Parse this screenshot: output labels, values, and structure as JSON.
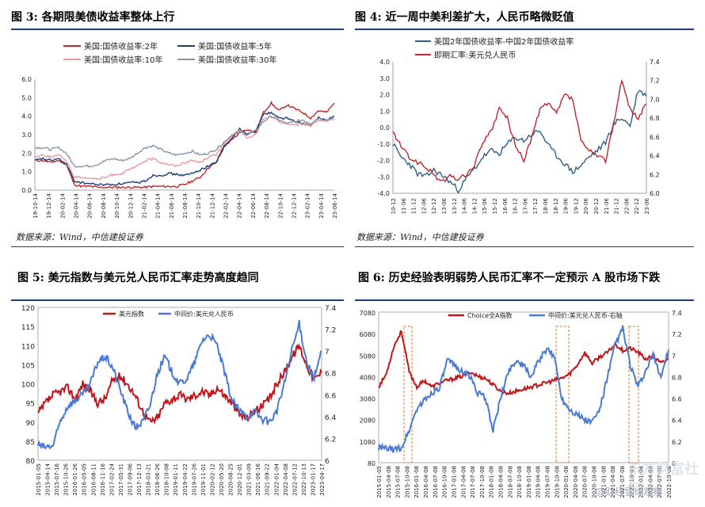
{
  "chart_data": [
    {
      "type": "line",
      "title": "图 3: 各期限美债收益率整体上行",
      "source": "数据来源：Wind，中信建投证券",
      "ylim": [
        0,
        6
      ],
      "y_ticks": [
        "0.0",
        "1.0",
        "2.0",
        "3.0",
        "4.0",
        "5.0",
        "6.0"
      ],
      "x_ticks": [
        "19-10-14",
        "19-12-14",
        "20-02-14",
        "20-04-14",
        "20-06-14",
        "20-08-14",
        "20-10-14",
        "20-12-14",
        "21-02-14",
        "21-04-14",
        "21-06-14",
        "21-08-14",
        "21-10-14",
        "21-12-14",
        "22-02-14",
        "22-04-14",
        "22-06-14",
        "22-08-14",
        "22-10-14",
        "22-12-14",
        "23-02-14",
        "23-04-14",
        "23-06-14"
      ],
      "legend_position": "top",
      "series": [
        {
          "name": "美国:国债收益率:2年",
          "color": "#c0272d",
          "values": [
            1.6,
            1.6,
            1.5,
            1.6,
            1.4,
            0.3,
            0.2,
            0.2,
            0.15,
            0.15,
            0.15,
            0.15,
            0.15,
            0.15,
            0.15,
            0.2,
            0.2,
            0.2,
            0.2,
            0.3,
            0.5,
            0.7,
            1.2,
            1.5,
            2.4,
            2.7,
            3.1,
            3.3,
            3.1,
            4.2,
            4.7,
            4.3,
            4.6,
            4.4,
            4.2,
            3.9,
            4.3,
            4.2,
            4.7
          ]
        },
        {
          "name": "美国:国债收益率:5年",
          "color": "#1f3d7a",
          "values": [
            1.6,
            1.7,
            1.6,
            1.7,
            1.4,
            0.5,
            0.4,
            0.35,
            0.3,
            0.3,
            0.3,
            0.35,
            0.4,
            0.4,
            0.5,
            0.8,
            0.8,
            0.9,
            0.85,
            0.8,
            0.9,
            1.1,
            1.3,
            1.5,
            2.3,
            2.8,
            3.3,
            3.0,
            3.2,
            4.1,
            4.2,
            3.9,
            3.9,
            3.7,
            3.6,
            3.5,
            3.9,
            3.8,
            4.0
          ]
        },
        {
          "name": "美国:国债收益率:10年",
          "color": "#e8999b",
          "values": [
            1.8,
            1.9,
            1.8,
            1.9,
            1.6,
            0.7,
            0.7,
            0.65,
            0.6,
            0.7,
            0.85,
            0.9,
            1.1,
            1.3,
            1.6,
            1.7,
            1.5,
            1.4,
            1.3,
            1.5,
            1.6,
            1.5,
            1.8,
            1.9,
            2.5,
            2.9,
            3.2,
            2.8,
            3.0,
            3.8,
            4.0,
            3.7,
            3.6,
            3.5,
            3.6,
            3.5,
            3.8,
            3.7,
            3.8
          ]
        },
        {
          "name": "美国:国债收益率:30年",
          "color": "#8a96a8",
          "values": [
            2.3,
            2.3,
            2.2,
            2.3,
            2.0,
            1.3,
            1.3,
            1.3,
            1.4,
            1.6,
            1.7,
            1.6,
            1.7,
            2.0,
            2.3,
            2.4,
            2.2,
            2.0,
            1.9,
            2.0,
            2.1,
            1.9,
            2.0,
            2.2,
            2.6,
            3.0,
            3.2,
            3.0,
            3.2,
            3.7,
            4.0,
            3.8,
            3.6,
            3.7,
            3.8,
            3.6,
            3.9,
            3.8,
            3.9
          ]
        }
      ]
    },
    {
      "type": "line",
      "title": "图 4: 近一周中美利差扩大，人民币略微贬值",
      "source": "数据来源：Wind，中信建投证券",
      "ylim": [
        -4.0,
        4.0
      ],
      "y2lim": [
        6.0,
        7.4
      ],
      "y_ticks": [
        "-4.0",
        "-3.0",
        "-2.0",
        "-1.0",
        "0.0",
        "1.0",
        "2.0",
        "3.0",
        "4.0"
      ],
      "y2_ticks": [
        "6.0",
        "6.2",
        "6.4",
        "6.6",
        "6.8",
        "7.0",
        "7.2",
        "7.4"
      ],
      "x_ticks": [
        "10-12",
        "11-06",
        "11-12",
        "12-06",
        "12-12",
        "13-06",
        "13-12",
        "14-06",
        "14-12",
        "15-06",
        "15-12",
        "16-06",
        "16-12",
        "17-06",
        "17-12",
        "18-06",
        "18-12",
        "19-06",
        "19-12",
        "20-06",
        "20-12",
        "21-06",
        "21-12",
        "22-06",
        "22-12",
        "23-06"
      ],
      "legend_position": "top-left",
      "series": [
        {
          "name": "美国2年国债收益率-中国2年国债收益率",
          "color": "#2e5f8a",
          "axis": "left",
          "values": [
            -1.0,
            -1.8,
            -2.2,
            -2.8,
            -3.0,
            -2.6,
            -2.9,
            -3.3,
            -3.8,
            -3.1,
            -2.5,
            -1.8,
            -1.4,
            -1.6,
            -1.0,
            -0.6,
            -0.8,
            -0.4,
            -0.2,
            -1.1,
            -1.7,
            -2.2,
            -2.7,
            -2.3,
            -1.8,
            -1.4,
            -0.9,
            0.2,
            0.6,
            0.1,
            2.3,
            1.9
          ]
        },
        {
          "name": "即期汇率:美元兑人民币",
          "color": "#c0272d",
          "axis": "right",
          "values": [
            6.65,
            6.5,
            6.38,
            6.33,
            6.28,
            6.2,
            6.12,
            6.18,
            6.15,
            6.2,
            6.3,
            6.55,
            6.65,
            6.9,
            6.8,
            6.5,
            6.35,
            6.6,
            6.9,
            6.95,
            6.85,
            7.05,
            7.0,
            6.55,
            6.45,
            6.4,
            6.35,
            6.75,
            7.2,
            6.9,
            6.8,
            6.95
          ]
        }
      ]
    },
    {
      "type": "line",
      "title": "图 5: 美元指数与美元兑人民币汇率走势高度趋同",
      "ylim": [
        80,
        120
      ],
      "y2lim": [
        6.0,
        7.4
      ],
      "y_ticks": [
        "80",
        "85",
        "90",
        "95",
        "100",
        "105",
        "110",
        "115",
        "120"
      ],
      "y2_ticks": [
        "6",
        "6.2",
        "6.4",
        "6.6",
        "6.8",
        "7",
        "7.2",
        "7.4"
      ],
      "x_ticks": [
        "2015-01-05",
        "2015-04-14",
        "2015-07-16",
        "2015-10-26",
        "2016-01-26",
        "2016-05-05",
        "2016-08-11",
        "2016-11-16",
        "2017-02-24",
        "2017-05-31",
        "2017-09-06",
        "2017-12-13",
        "2018-03-21",
        "2018-06-26",
        "2018-10-08",
        "2019-01-11",
        "2019-04-22",
        "2019-07-26",
        "2019-11-01",
        "2020-02-12",
        "2020-05-20",
        "2020-08-25",
        "2020-12-01",
        "2021-03-09",
        "2021-06-16",
        "2021-09-22",
        "2022-01-04",
        "2022-04-08",
        "2022-07-12",
        "2022-10-13",
        "2023-01-17",
        "2023-04-17"
      ],
      "legend_position": "top-center",
      "series": [
        {
          "name": "美元指数",
          "color": "#c0171d",
          "axis": "left",
          "values": [
            92,
            95,
            97,
            98,
            99,
            96,
            100,
            98,
            95,
            96,
            101,
            102,
            100,
            97,
            93,
            90,
            91,
            95,
            96,
            97,
            96,
            97,
            98,
            97,
            99,
            97,
            95,
            92,
            91,
            93,
            94,
            96,
            100,
            103,
            107,
            110,
            105,
            101,
            103
          ]
        },
        {
          "name": "中间价:美元兑人民币",
          "color": "#4a7bd0",
          "axis": "right",
          "values": [
            6.14,
            6.12,
            6.13,
            6.36,
            6.5,
            6.55,
            6.6,
            6.7,
            6.9,
            6.95,
            6.85,
            6.65,
            6.45,
            6.3,
            6.35,
            6.5,
            6.8,
            6.95,
            6.8,
            6.7,
            6.75,
            6.9,
            7.1,
            7.15,
            7.05,
            6.8,
            6.55,
            6.45,
            6.4,
            6.45,
            6.38,
            6.35,
            6.45,
            6.7,
            7.0,
            7.25,
            6.9,
            6.75,
            7.0
          ]
        }
      ]
    },
    {
      "type": "line",
      "title": "图 6: 历史经验表明弱势人民币汇率不一定预示 A 股市场下跌",
      "ylim": [
        80,
        7080
      ],
      "y2lim": [
        6.0,
        7.4
      ],
      "y_ticks": [
        "80",
        "1080",
        "2080",
        "3080",
        "4080",
        "5080",
        "6080",
        "7080"
      ],
      "y2_ticks": [
        "6",
        "6.2",
        "6.4",
        "6.6",
        "6.8",
        "7",
        "7.2",
        "7.4"
      ],
      "x_ticks": [
        "2015-01-05",
        "2015-04-08",
        "2015-07-08",
        "2015-10-08",
        "2016-01-08",
        "2016-04-08",
        "2016-07-08",
        "2016-10-08",
        "2017-01-08",
        "2017-04-08",
        "2017-07-08",
        "2017-10-08",
        "2018-01-08",
        "2018-04-08",
        "2018-07-08",
        "2018-10-08",
        "2019-01-08",
        "2019-04-08",
        "2019-07-08",
        "2019-10-08",
        "2020-01-08",
        "2020-04-08",
        "2020-07-08",
        "2020-10-08",
        "2021-01-08",
        "2021-04-08",
        "2021-07-08",
        "2021-10-08",
        "2022-01-08",
        "2022-04-08",
        "2022-07-08",
        "2022-10-08"
      ],
      "legend_position": "top-center",
      "series": [
        {
          "name": "Choice全A指数",
          "color": "#c0171d",
          "axis": "left",
          "values": [
            3600,
            4200,
            5500,
            6200,
            4300,
            3600,
            3900,
            3600,
            3800,
            3900,
            4000,
            4100,
            4300,
            4100,
            4000,
            3700,
            3400,
            3300,
            3400,
            3500,
            3600,
            3700,
            3800,
            3900,
            4000,
            4200,
            4600,
            5200,
            4700,
            5000,
            5200,
            5600,
            5300,
            5400,
            5200,
            4900,
            5000,
            4700,
            4900
          ]
        },
        {
          "name": "中间价:美元兑人民币-右轴",
          "color": "#4a7bd0",
          "axis": "right",
          "values": [
            6.14,
            6.13,
            6.12,
            6.14,
            6.3,
            6.5,
            6.58,
            6.65,
            6.7,
            6.95,
            6.9,
            6.85,
            6.8,
            6.65,
            6.6,
            6.3,
            6.6,
            6.85,
            6.95,
            6.9,
            6.8,
            6.95,
            7.05,
            7.0,
            6.6,
            6.5,
            6.45,
            6.4,
            6.38,
            6.5,
            6.8,
            7.1,
            7.25,
            6.9,
            6.7,
            6.85,
            7.0,
            6.8,
            7.05
          ]
        }
      ]
    }
  ],
  "highlight_windows": [
    "2015-08",
    "2018-09",
    "2019-08"
  ],
  "watermark": "@财经雪球观察",
  "watermark2": "东方财富社区"
}
